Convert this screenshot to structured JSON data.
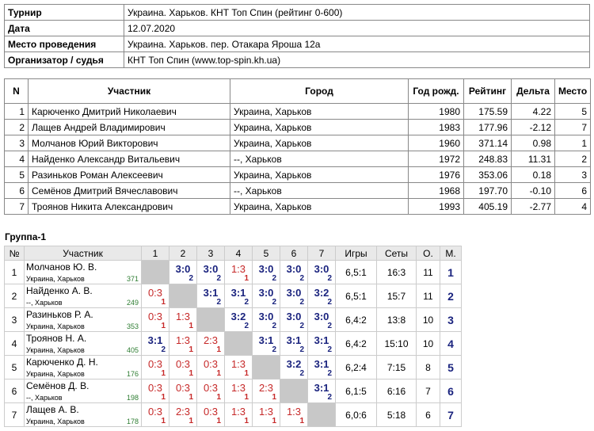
{
  "info": {
    "rows": [
      [
        "Турнир",
        "Украина. Харьков. КНТ Топ Спин (рейтинг 0-600)"
      ],
      [
        "Дата",
        "12.07.2020"
      ],
      [
        "Место проведения",
        "Украина. Харьков. пер. Отакара Яроша 12а"
      ],
      [
        "Организатор / судья",
        "КНТ Топ Спин (www.top-spin.kh.ua)"
      ]
    ]
  },
  "participants": {
    "header": [
      "N",
      "Участник",
      "Город",
      "Год рожд.",
      "Рейтинг",
      "Дельта",
      "Место"
    ],
    "rows": [
      [
        "1",
        "Карюченко Дмитрий Николаевич",
        "Украина, Харьков",
        "1980",
        "175.59",
        "4.22",
        "5"
      ],
      [
        "2",
        "Лащев Андрей Владимирович",
        "Украина, Харьков",
        "1983",
        "177.96",
        "-2.12",
        "7"
      ],
      [
        "3",
        "Молчанов Юрий Викторович",
        "Украина, Харьков",
        "1960",
        "371.14",
        "0.98",
        "1"
      ],
      [
        "4",
        "Найденко Александр Витальевич",
        "--, Харьков",
        "1972",
        "248.83",
        "11.31",
        "2"
      ],
      [
        "5",
        "Разиньков Роман Алексеевич",
        "Украина, Харьков",
        "1976",
        "353.06",
        "0.18",
        "3"
      ],
      [
        "6",
        "Семёнов Дмитрий Вячеславович",
        "--, Харьков",
        "1968",
        "197.70",
        "-0.10",
        "6"
      ],
      [
        "7",
        "Троянов Никита Александрович",
        "Украина, Харьков",
        "1993",
        "405.19",
        "-2.77",
        "4"
      ]
    ]
  },
  "group": {
    "title": "Группа-1",
    "header": [
      "№",
      "Участник",
      "1",
      "2",
      "3",
      "4",
      "5",
      "6",
      "7",
      "Игры",
      "Сеты",
      "О.",
      "М."
    ],
    "rows": [
      {
        "no": "1",
        "name": "Молчанов Ю. В.",
        "region": "Украина, Харьков",
        "rating": "371",
        "games": [
          null,
          {
            "score": "3:0",
            "pts": "2"
          },
          {
            "score": "3:0",
            "pts": "2"
          },
          {
            "score": "1:3",
            "pts": "1"
          },
          {
            "score": "3:0",
            "pts": "2"
          },
          {
            "score": "3:0",
            "pts": "2"
          },
          {
            "score": "3:0",
            "pts": "2"
          }
        ],
        "played": "6,5:1",
        "sets": "16:3",
        "points": "11",
        "place": "1"
      },
      {
        "no": "2",
        "name": "Найденко А. В.",
        "region": "--, Харьков",
        "rating": "249",
        "games": [
          {
            "score": "0:3",
            "pts": "1"
          },
          null,
          {
            "score": "3:1",
            "pts": "2"
          },
          {
            "score": "3:1",
            "pts": "2"
          },
          {
            "score": "3:0",
            "pts": "2"
          },
          {
            "score": "3:0",
            "pts": "2"
          },
          {
            "score": "3:2",
            "pts": "2"
          }
        ],
        "played": "6,5:1",
        "sets": "15:7",
        "points": "11",
        "place": "2"
      },
      {
        "no": "3",
        "name": "Разиньков Р. А.",
        "region": "Украина, Харьков",
        "rating": "353",
        "games": [
          {
            "score": "0:3",
            "pts": "1"
          },
          {
            "score": "1:3",
            "pts": "1"
          },
          null,
          {
            "score": "3:2",
            "pts": "2"
          },
          {
            "score": "3:0",
            "pts": "2"
          },
          {
            "score": "3:0",
            "pts": "2"
          },
          {
            "score": "3:0",
            "pts": "2"
          }
        ],
        "played": "6,4:2",
        "sets": "13:8",
        "points": "10",
        "place": "3"
      },
      {
        "no": "4",
        "name": "Троянов Н. А.",
        "region": "Украина, Харьков",
        "rating": "405",
        "games": [
          {
            "score": "3:1",
            "pts": "2"
          },
          {
            "score": "1:3",
            "pts": "1"
          },
          {
            "score": "2:3",
            "pts": "1"
          },
          null,
          {
            "score": "3:1",
            "pts": "2"
          },
          {
            "score": "3:1",
            "pts": "2"
          },
          {
            "score": "3:1",
            "pts": "2"
          }
        ],
        "played": "6,4:2",
        "sets": "15:10",
        "points": "10",
        "place": "4"
      },
      {
        "no": "5",
        "name": "Карюченко Д. Н.",
        "region": "Украина, Харьков",
        "rating": "176",
        "games": [
          {
            "score": "0:3",
            "pts": "1"
          },
          {
            "score": "0:3",
            "pts": "1"
          },
          {
            "score": "0:3",
            "pts": "1"
          },
          {
            "score": "1:3",
            "pts": "1"
          },
          null,
          {
            "score": "3:2",
            "pts": "2"
          },
          {
            "score": "3:1",
            "pts": "2"
          }
        ],
        "played": "6,2:4",
        "sets": "7:15",
        "points": "8",
        "place": "5"
      },
      {
        "no": "6",
        "name": "Семёнов Д. В.",
        "region": "--, Харьков",
        "rating": "198",
        "games": [
          {
            "score": "0:3",
            "pts": "1"
          },
          {
            "score": "0:3",
            "pts": "1"
          },
          {
            "score": "0:3",
            "pts": "1"
          },
          {
            "score": "1:3",
            "pts": "1"
          },
          {
            "score": "2:3",
            "pts": "1"
          },
          null,
          {
            "score": "3:1",
            "pts": "2"
          }
        ],
        "played": "6,1:5",
        "sets": "6:16",
        "points": "7",
        "place": "6"
      },
      {
        "no": "7",
        "name": "Лащев А. В.",
        "region": "Украина, Харьков",
        "rating": "178",
        "games": [
          {
            "score": "0:3",
            "pts": "1"
          },
          {
            "score": "2:3",
            "pts": "1"
          },
          {
            "score": "0:3",
            "pts": "1"
          },
          {
            "score": "1:3",
            "pts": "1"
          },
          {
            "score": "1:3",
            "pts": "1"
          },
          {
            "score": "1:3",
            "pts": "1"
          },
          null
        ],
        "played": "6,0:6",
        "sets": "5:18",
        "points": "6",
        "place": "7"
      }
    ]
  }
}
